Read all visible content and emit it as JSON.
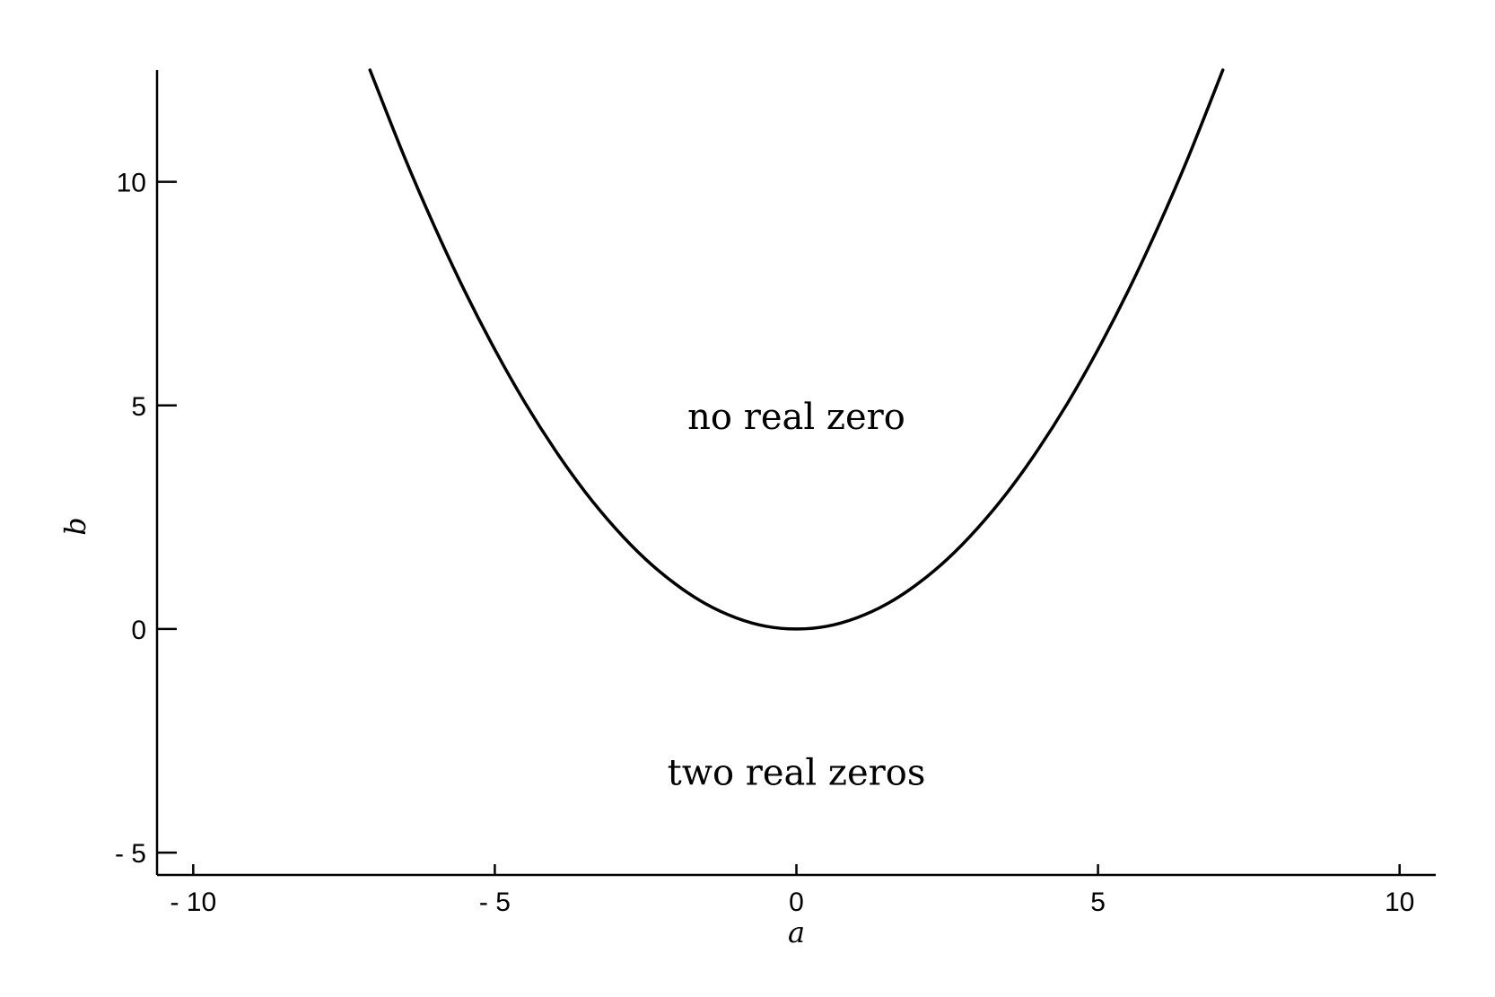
{
  "chart_data": {
    "type": "line",
    "title": "",
    "xlabel": "a",
    "ylabel": "b",
    "xlim": [
      -10.6,
      10.6
    ],
    "ylim": [
      -5.5,
      12.5
    ],
    "grid": false,
    "x_ticks": [
      -10,
      -5,
      0,
      5,
      10
    ],
    "x_tick_labels": [
      "- 10",
      "- 5",
      "0",
      "5",
      "10"
    ],
    "y_ticks": [
      -5,
      0,
      5,
      10
    ],
    "y_tick_labels": [
      "- 5",
      "0",
      "5",
      "10"
    ],
    "series": [
      {
        "x": [
          -7.07,
          -6.5,
          -6,
          -5.5,
          -5,
          -4.5,
          -4,
          -3.5,
          -3,
          -2.5,
          -2,
          -1.5,
          -1,
          -0.5,
          0,
          0.5,
          1,
          1.5,
          2,
          2.5,
          3,
          3.5,
          4,
          4.5,
          5,
          5.5,
          6,
          6.5,
          7.07
        ],
        "y": [
          12.5,
          10.56,
          9.0,
          7.56,
          6.25,
          5.06,
          4.0,
          3.06,
          2.25,
          1.56,
          1.0,
          0.56,
          0.25,
          0.06,
          0,
          0.06,
          0.25,
          0.56,
          1.0,
          1.56,
          2.25,
          3.06,
          4.0,
          5.06,
          6.25,
          7.56,
          9.0,
          10.56,
          12.5
        ],
        "color": "#000000"
      }
    ],
    "annotations": [
      {
        "text": "no real zero",
        "x": 0,
        "y": 4.75
      },
      {
        "text": "two real zeros",
        "x": 0,
        "y": -3.2
      }
    ]
  }
}
